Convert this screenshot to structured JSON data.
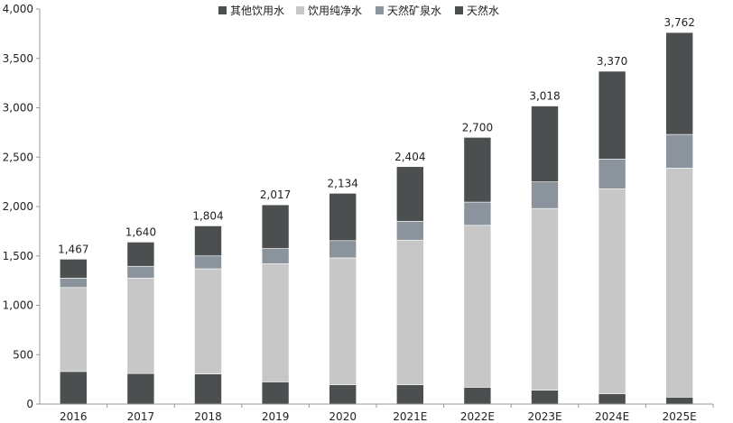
{
  "chart_data": {
    "type": "bar",
    "stacked": true,
    "categories": [
      "2016",
      "2017",
      "2018",
      "2019",
      "2020",
      "2021E",
      "2022E",
      "2023E",
      "2024E",
      "2025E"
    ],
    "totals": [
      "1,467",
      "1,640",
      "1,804",
      "2,017",
      "2,134",
      "2,404",
      "2,700",
      "3,018",
      "3,370",
      "3,762"
    ],
    "series": [
      {
        "name": "其他饮用水",
        "color": "#4b4f4f",
        "values": [
          330,
          310,
          305,
          225,
          195,
          195,
          170,
          140,
          105,
          70
        ]
      },
      {
        "name": "饮用纯净水",
        "color": "#c7c7c7",
        "values": [
          850,
          965,
          1065,
          1195,
          1285,
          1465,
          1640,
          1840,
          2075,
          2320
        ]
      },
      {
        "name": "天然矿泉水",
        "color": "#8b949d",
        "values": [
          95,
          120,
          130,
          155,
          175,
          190,
          235,
          270,
          300,
          340
        ]
      },
      {
        "name": "天然水",
        "color": "#4b4f4f",
        "values": [
          192,
          245,
          304,
          442,
          479,
          554,
          655,
          768,
          890,
          1032
        ]
      }
    ],
    "ylim": [
      0,
      4000
    ],
    "yticks": [
      "0",
      "500",
      "1,000",
      "1,500",
      "2,000",
      "2,500",
      "3,000",
      "3,500",
      "4,000"
    ],
    "ytick_values": [
      0,
      500,
      1000,
      1500,
      2000,
      2500,
      3000,
      3500,
      4000
    ],
    "legend_position": "top-center",
    "grid": false
  }
}
